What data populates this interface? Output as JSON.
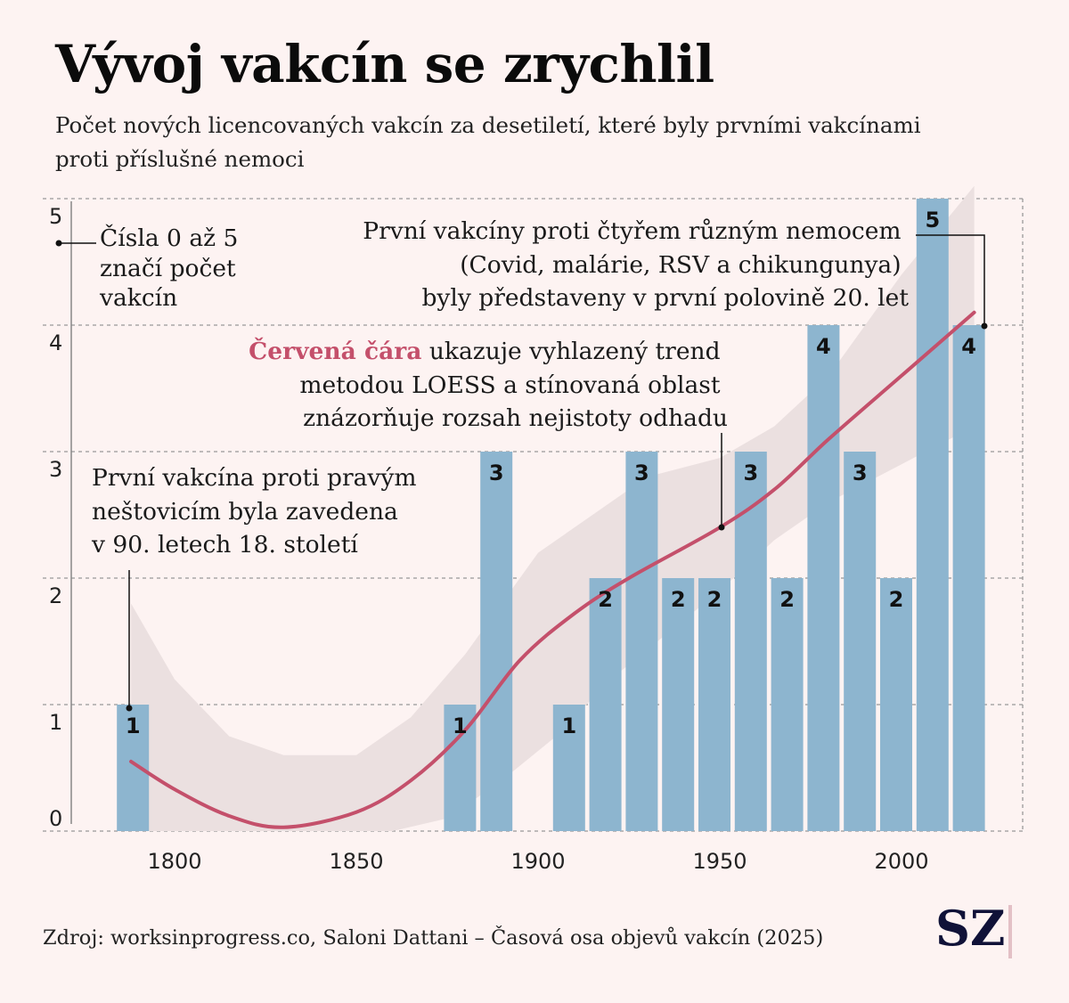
{
  "title": "Vývoj vakcín se zrychlil",
  "subtitle": "Počet nových licencovaných vakcín za desetiletí, které byly prvními vakcínami proti příslušné nemoci",
  "source": "Zdroj: worksinprogress.co, Saloni Dattani – Časová osa objevů vakcín (2025)",
  "logo": "SZ",
  "colors": {
    "bar": "#8db5cf",
    "trend": "#c4506b",
    "band": "#ebe0e0",
    "background": "#fdf3f2"
  },
  "annotations": {
    "y_axis_note": [
      "Čísla 0 až 5",
      "značí počet",
      "vakcín"
    ],
    "smallpox": [
      "První vakcína proti pravým",
      "neštovicím byla zavedena",
      "v 90. letech 18. století"
    ],
    "trend_highlight": "Červená čára",
    "trend": [
      " ukazuje vyhlazený trend",
      "metodou LOESS a stínovaná oblast",
      "znázorňuje rozsah nejistoty odhadu"
    ],
    "recent": [
      "První vakcíny proti čtyřem různým nemocem",
      "(Covid, malárie, RSV a chikungunya)",
      "byly představeny v první polovině 20. let"
    ]
  },
  "chart_data": {
    "type": "bar",
    "title": "Vývoj vakcín se zrychlil",
    "xlabel": "",
    "ylabel": "",
    "xlim": [
      1775,
      2035
    ],
    "ylim": [
      0,
      5
    ],
    "x_ticks": [
      1800,
      1850,
      1900,
      1950,
      2000
    ],
    "y_ticks": [
      0,
      1,
      2,
      3,
      4,
      5
    ],
    "grid": true,
    "bars": [
      {
        "decade": 1790,
        "value": 1
      },
      {
        "decade": 1880,
        "value": 1
      },
      {
        "decade": 1890,
        "value": 3
      },
      {
        "decade": 1910,
        "value": 1
      },
      {
        "decade": 1920,
        "value": 2
      },
      {
        "decade": 1930,
        "value": 3
      },
      {
        "decade": 1940,
        "value": 2
      },
      {
        "decade": 1950,
        "value": 2
      },
      {
        "decade": 1960,
        "value": 3
      },
      {
        "decade": 1970,
        "value": 2
      },
      {
        "decade": 1980,
        "value": 4
      },
      {
        "decade": 1990,
        "value": 3
      },
      {
        "decade": 2000,
        "value": 2
      },
      {
        "decade": 2010,
        "value": 5
      },
      {
        "decade": 2020,
        "value": 4
      }
    ],
    "trend_loess": [
      [
        1788,
        0.55
      ],
      [
        1800,
        0.33
      ],
      [
        1815,
        0.12
      ],
      [
        1830,
        0.03
      ],
      [
        1850,
        0.15
      ],
      [
        1865,
        0.4
      ],
      [
        1880,
        0.8
      ],
      [
        1895,
        1.35
      ],
      [
        1910,
        1.72
      ],
      [
        1925,
        2.0
      ],
      [
        1950,
        2.4
      ],
      [
        1965,
        2.7
      ],
      [
        1980,
        3.1
      ],
      [
        2000,
        3.6
      ],
      [
        2020,
        4.1
      ]
    ],
    "band_upper": [
      [
        1788,
        1.8
      ],
      [
        1800,
        1.2
      ],
      [
        1815,
        0.75
      ],
      [
        1830,
        0.6
      ],
      [
        1850,
        0.6
      ],
      [
        1865,
        0.9
      ],
      [
        1880,
        1.4
      ],
      [
        1900,
        2.2
      ],
      [
        1930,
        2.8
      ],
      [
        1950,
        2.95
      ],
      [
        1965,
        3.2
      ],
      [
        1980,
        3.6
      ],
      [
        2000,
        4.4
      ],
      [
        2020,
        5.1
      ]
    ],
    "band_lower": [
      [
        1788,
        0.0
      ],
      [
        1800,
        0.0
      ],
      [
        1830,
        0.0
      ],
      [
        1860,
        0.0
      ],
      [
        1875,
        0.1
      ],
      [
        1890,
        0.4
      ],
      [
        1905,
        0.75
      ],
      [
        1920,
        1.2
      ],
      [
        1950,
        1.9
      ],
      [
        1965,
        2.3
      ],
      [
        1980,
        2.6
      ],
      [
        2000,
        2.9
      ],
      [
        2020,
        3.2
      ]
    ]
  }
}
